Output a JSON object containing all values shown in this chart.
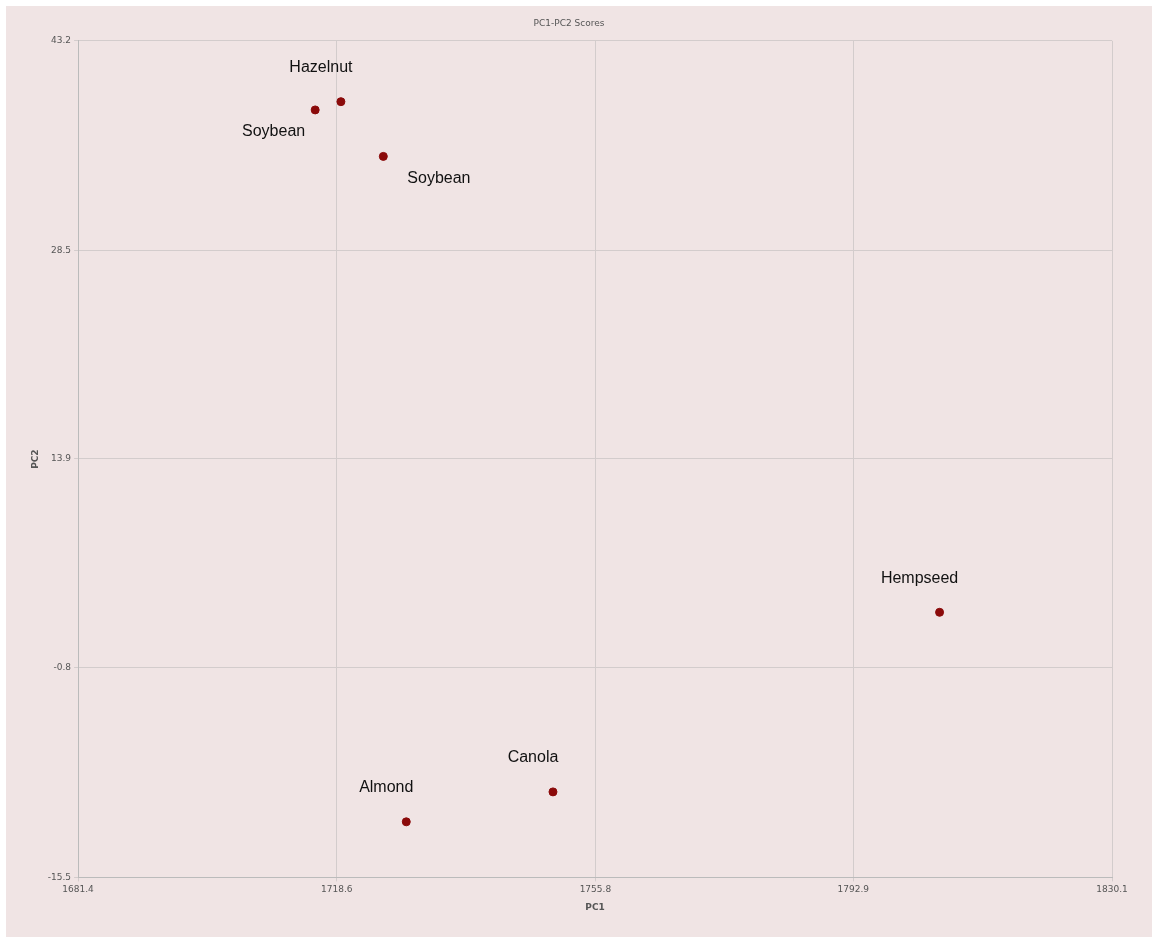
{
  "chart_data": {
    "type": "scatter",
    "title": "PC1-PC2 Scores",
    "xlabel": "PC1",
    "ylabel": "PC2",
    "x": [
      1715.5,
      1719.2,
      1725.3,
      1805.3,
      1749.7,
      1728.6
    ],
    "values": [
      38.35,
      38.93,
      35.09,
      3.1,
      -9.5,
      -11.6
    ],
    "color": "#8b0a0a",
    "marker": "circle",
    "grid": true,
    "legend": false,
    "xlim": [
      1681.4,
      1830.1
    ],
    "xticks": [
      1681.4,
      1718.6,
      1755.8,
      1792.9,
      1830.1
    ],
    "ylim": [
      -15.5,
      43.2
    ],
    "yticks": [
      -15.5,
      -0.8,
      13.9,
      28.5,
      43.2
    ],
    "annotations": [
      {
        "text": "Soybean",
        "x": 1715.5,
        "y": 38.35
      },
      {
        "text": "Hazelnut",
        "x": 1719.2,
        "y": 38.93
      },
      {
        "text": "Soybean",
        "x": 1725.3,
        "y": 35.09
      },
      {
        "text": "Hempseed",
        "x": 1805.3,
        "y": 3.1
      },
      {
        "text": "Canola",
        "x": 1749.7,
        "y": -9.5
      },
      {
        "text": "Almond",
        "x": 1728.6,
        "y": -11.6
      }
    ]
  }
}
